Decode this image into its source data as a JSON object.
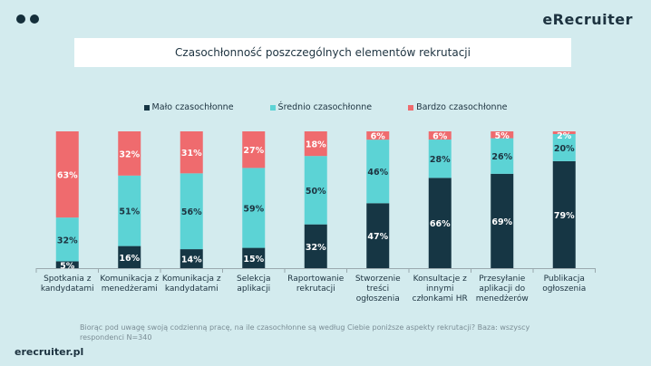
{
  "header": {
    "brand": "eRecruiter",
    "title": "Czasochłonność poszczególnych elementów rekrutacji"
  },
  "footer": {
    "note": "Biorąc pod uwagę swoją codzienną pracę, na ile czasochłonne są według Ciebie poniższe aspekty rekrutacji? Baza: wszyscy respondenci N=340",
    "url": "erecruiter.pl"
  },
  "colors": {
    "dark": "#163644",
    "mid": "#5cd3d5",
    "red": "#ef6b6e"
  },
  "chart_data": {
    "type": "bar",
    "stacked": true,
    "normalized_percent": true,
    "title": "Czasochłonność poszczególnych elementów rekrutacji",
    "legend_position": "top",
    "categories": [
      [
        "Spotkania z",
        "kandydatami"
      ],
      [
        "Komunikacja z",
        "menedżerami"
      ],
      [
        "Komunikacja z",
        "kandydatami"
      ],
      [
        "Selekcja",
        "aplikacji"
      ],
      [
        "Raportowanie",
        "rekrutacji"
      ],
      [
        "Stworzenie",
        "treści",
        "ogłoszenia"
      ],
      [
        "Konsultacje z",
        "innymi",
        "członkami HR"
      ],
      [
        "Przesyłanie",
        "aplikacji do",
        "menedżerów"
      ],
      [
        "Publikacja",
        "ogłoszenia"
      ]
    ],
    "series": [
      {
        "name": "Mało czasochłonne",
        "color": "#163644",
        "labels": [
          "5%",
          "16%",
          "14%",
          "15%",
          "32%",
          "47%",
          "66%",
          "69%",
          "79%"
        ],
        "values": [
          5,
          16,
          14,
          15,
          32,
          47,
          66,
          69,
          79
        ]
      },
      {
        "name": "Średnio czasochłonne",
        "color": "#5cd3d5",
        "labels": [
          "32%",
          "51%",
          "56%",
          "59%",
          "50%",
          "46%",
          "28%",
          "26%",
          "20%"
        ],
        "values": [
          32,
          51,
          56,
          59,
          50,
          46,
          28,
          26,
          20
        ]
      },
      {
        "name": "Bardzo czasochłonne",
        "color": "#ef6b6e",
        "labels": [
          "63%",
          "32%",
          "31%",
          "27%",
          "18%",
          "6%",
          "6%",
          "5%",
          "2%"
        ],
        "values": [
          63,
          32,
          31,
          27,
          18,
          6,
          6,
          5,
          2
        ]
      }
    ]
  }
}
